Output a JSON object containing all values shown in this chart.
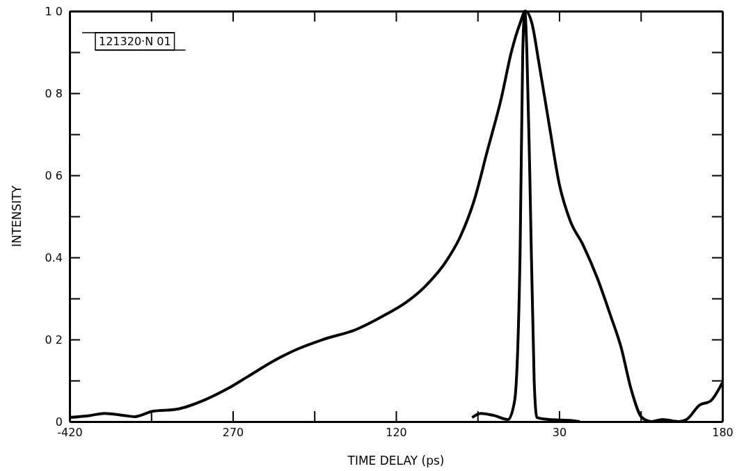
{
  "chart_data": {
    "type": "line",
    "xlabel": "TIME DELAY (ps)",
    "ylabel": "INTENSITY",
    "annotations": [
      "121320·N 01"
    ],
    "xlim": [
      -420,
      180
    ],
    "ylim": [
      0,
      1
    ],
    "xticks": [
      {
        "value": -420,
        "label": "-420"
      },
      {
        "value": -345,
        "label": null
      },
      {
        "value": -270,
        "label": "270"
      },
      {
        "value": -195,
        "label": null
      },
      {
        "value": -120,
        "label": "120"
      },
      {
        "value": -45,
        "label": null
      },
      {
        "value": 30,
        "label": "30"
      },
      {
        "value": 105,
        "label": null
      },
      {
        "value": 180,
        "label": "180"
      }
    ],
    "yticks": [
      {
        "value": 0,
        "label": "0"
      },
      {
        "value": 0.1,
        "label": null
      },
      {
        "value": 0.2,
        "label": "0 2"
      },
      {
        "value": 0.3,
        "label": null
      },
      {
        "value": 0.4,
        "label": "0.4"
      },
      {
        "value": 0.5,
        "label": null
      },
      {
        "value": 0.6,
        "label": "0 6"
      },
      {
        "value": 0.7,
        "label": null
      },
      {
        "value": 0.8,
        "label": "0 8"
      },
      {
        "value": 0.9,
        "label": null
      },
      {
        "value": 1,
        "label": "1 0"
      }
    ],
    "grid": false,
    "line_style": "solid",
    "marker": "none",
    "series": [
      {
        "color": "#000000",
        "x": [
          -420,
          -401,
          -388,
          -370,
          -360,
          -344,
          -322,
          -294,
          -275,
          -256,
          -231,
          -212,
          -187,
          -156,
          -130,
          -111,
          -93,
          -74,
          -61,
          -48,
          -36,
          -23,
          -14,
          -6,
          -1,
          5,
          11,
          21,
          30,
          40,
          52,
          65,
          77,
          87,
          96,
          106,
          115,
          125,
          140,
          147,
          159,
          169,
          180
        ],
        "values": [
          0.01,
          0.015,
          0.02,
          0.015,
          0.012,
          0.025,
          0.03,
          0.055,
          0.08,
          0.11,
          0.15,
          0.175,
          0.2,
          0.225,
          0.26,
          0.29,
          0.33,
          0.39,
          0.45,
          0.54,
          0.66,
          0.79,
          0.9,
          0.97,
          1.0,
          0.97,
          0.88,
          0.72,
          0.58,
          0.49,
          0.43,
          0.35,
          0.26,
          0.18,
          0.08,
          0.01,
          0.0,
          0.005,
          0.0,
          0.005,
          0.04,
          0.05,
          0.095
        ]
      },
      {
        "color": "#000000",
        "x": [
          -50,
          -42,
          -30,
          -17,
          -11,
          -6,
          -3.5,
          -1.6,
          0.3,
          3,
          7,
          9.5,
          21,
          40,
          49
        ],
        "values": [
          0.01,
          0.02,
          0.015,
          0.005,
          0.05,
          0.4,
          0.9,
          1.0,
          0.9,
          0.6,
          0.1,
          0.01,
          0.005,
          0.003,
          0.0
        ]
      }
    ]
  }
}
